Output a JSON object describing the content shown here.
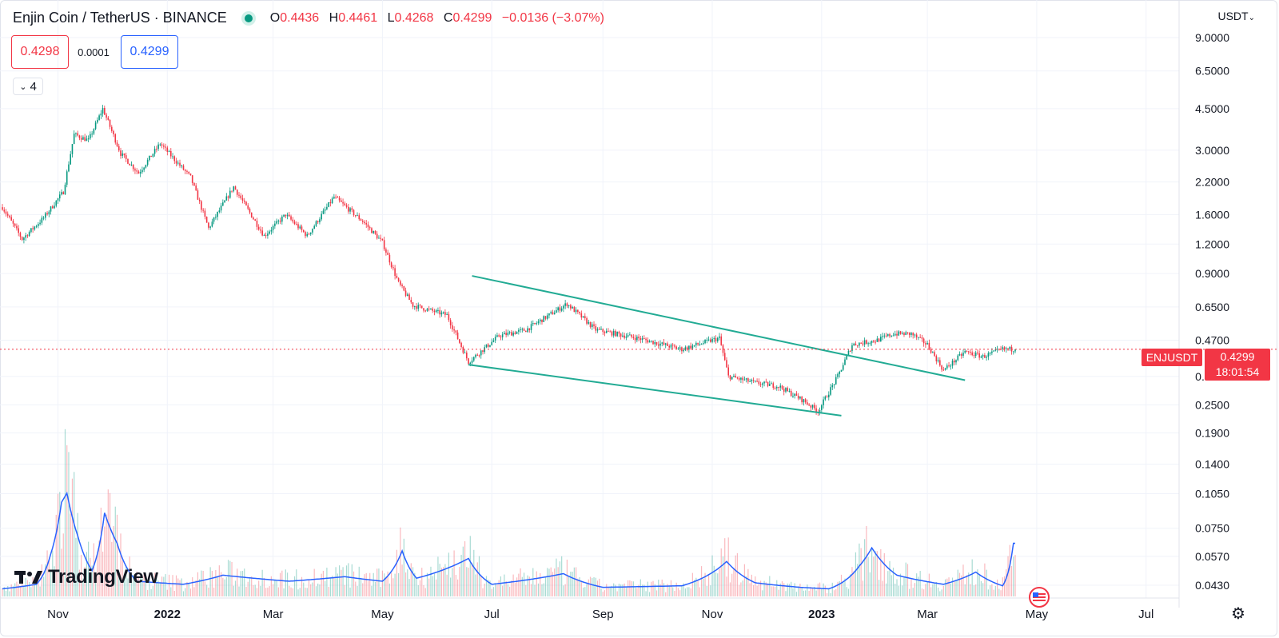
{
  "header": {
    "title": "Enjin Coin / TetherUS · BINANCE",
    "o_label": "O",
    "o_value": "0.4436",
    "h_label": "H",
    "h_value": "0.4461",
    "l_label": "L",
    "l_value": "0.4268",
    "c_label": "C",
    "c_value": "0.4299",
    "change": "−0.0136 (−3.07%)"
  },
  "trade": {
    "sell": "0.4298",
    "spread": "0.0001",
    "buy": "0.4299"
  },
  "indicators_toggle": {
    "count": "4"
  },
  "currency": "USDT",
  "symbol_label": "ENJUSDT",
  "last_price": "0.4299",
  "countdown": "18:01:54",
  "brand": "TradingView",
  "colors": {
    "up": "#089981",
    "down": "#f23645",
    "volume_ma": "#2962ff",
    "channel": "#22ab94",
    "grid": "#f0f3fa"
  },
  "chart_data": {
    "type": "candlestick",
    "title": "Enjin Coin / TetherUS · BINANCE",
    "y_scale": "log",
    "y_ticks": [
      "9.0000",
      "6.5000",
      "4.5000",
      "3.0000",
      "2.2000",
      "1.6000",
      "1.2000",
      "0.9000",
      "0.6500",
      "0.4700",
      "0.3300",
      "0.2500",
      "0.1900",
      "0.1400",
      "0.1050",
      "0.0750",
      "0.0570",
      "0.0430"
    ],
    "x_ticks": [
      "Nov",
      "2022",
      "Mar",
      "May",
      "Jul",
      "Sep",
      "Nov",
      "2023",
      "Mar",
      "May",
      "Jul"
    ],
    "current_price": 0.4299,
    "price_path": [
      {
        "date": "2021-10-01",
        "close": 1.72
      },
      {
        "date": "2021-10-12",
        "close": 1.26
      },
      {
        "date": "2021-10-24",
        "close": 1.55
      },
      {
        "date": "2021-11-04",
        "close": 2.0
      },
      {
        "date": "2021-11-10",
        "close": 3.5
      },
      {
        "date": "2021-11-18",
        "close": 3.3
      },
      {
        "date": "2021-11-26",
        "close": 4.5
      },
      {
        "date": "2021-12-06",
        "close": 2.9
      },
      {
        "date": "2021-12-16",
        "close": 2.4
      },
      {
        "date": "2021-12-28",
        "close": 3.2
      },
      {
        "date": "2022-01-14",
        "close": 2.3
      },
      {
        "date": "2022-01-24",
        "close": 1.4
      },
      {
        "date": "2022-02-07",
        "close": 2.1
      },
      {
        "date": "2022-02-24",
        "close": 1.3
      },
      {
        "date": "2022-03-08",
        "close": 1.6
      },
      {
        "date": "2022-03-20",
        "close": 1.3
      },
      {
        "date": "2022-04-04",
        "close": 1.9
      },
      {
        "date": "2022-04-20",
        "close": 1.5
      },
      {
        "date": "2022-05-01",
        "close": 1.22
      },
      {
        "date": "2022-05-10",
        "close": 0.82
      },
      {
        "date": "2022-05-18",
        "close": 0.66
      },
      {
        "date": "2022-06-06",
        "close": 0.6
      },
      {
        "date": "2022-06-18",
        "close": 0.38
      },
      {
        "date": "2022-07-05",
        "close": 0.49
      },
      {
        "date": "2022-07-20",
        "close": 0.52
      },
      {
        "date": "2022-08-12",
        "close": 0.67
      },
      {
        "date": "2022-08-28",
        "close": 0.52
      },
      {
        "date": "2022-09-20",
        "close": 0.48
      },
      {
        "date": "2022-10-15",
        "close": 0.43
      },
      {
        "date": "2022-11-05",
        "close": 0.48
      },
      {
        "date": "2022-11-10",
        "close": 0.33
      },
      {
        "date": "2022-11-25",
        "close": 0.31
      },
      {
        "date": "2022-12-08",
        "close": 0.3
      },
      {
        "date": "2022-12-22",
        "close": 0.26
      },
      {
        "date": "2022-12-30",
        "close": 0.235
      },
      {
        "date": "2023-01-10",
        "close": 0.33
      },
      {
        "date": "2023-01-18",
        "close": 0.45
      },
      {
        "date": "2023-02-01",
        "close": 0.47
      },
      {
        "date": "2023-02-10",
        "close": 0.5
      },
      {
        "date": "2023-02-20",
        "close": 0.5
      },
      {
        "date": "2023-03-01",
        "close": 0.45
      },
      {
        "date": "2023-03-10",
        "close": 0.35
      },
      {
        "date": "2023-03-22",
        "close": 0.42
      },
      {
        "date": "2023-04-01",
        "close": 0.4
      },
      {
        "date": "2023-04-12",
        "close": 0.43
      },
      {
        "date": "2023-04-19",
        "close": 0.4299
      }
    ],
    "channel_lines": [
      {
        "name": "upper",
        "from": {
          "date": "2022-06-20",
          "price": 0.88
        },
        "to": {
          "date": "2023-03-22",
          "price": 0.318
        }
      },
      {
        "name": "lower",
        "from": {
          "date": "2022-06-18",
          "price": 0.37
        },
        "to": {
          "date": "2023-01-12",
          "price": 0.225
        }
      }
    ],
    "volume_ma_path": [
      {
        "date": "2021-10-01",
        "value": 0.05
      },
      {
        "date": "2021-10-20",
        "value": 0.08
      },
      {
        "date": "2021-10-28",
        "value": 0.28
      },
      {
        "date": "2021-11-03",
        "value": 0.62
      },
      {
        "date": "2021-11-06",
        "value": 0.68
      },
      {
        "date": "2021-11-12",
        "value": 0.4
      },
      {
        "date": "2021-11-20",
        "value": 0.17
      },
      {
        "date": "2021-11-27",
        "value": 0.55
      },
      {
        "date": "2021-12-04",
        "value": 0.35
      },
      {
        "date": "2021-12-15",
        "value": 0.1
      },
      {
        "date": "2022-01-10",
        "value": 0.08
      },
      {
        "date": "2022-02-01",
        "value": 0.14
      },
      {
        "date": "2022-03-10",
        "value": 0.1
      },
      {
        "date": "2022-04-10",
        "value": 0.13
      },
      {
        "date": "2022-05-01",
        "value": 0.1
      },
      {
        "date": "2022-05-12",
        "value": 0.3
      },
      {
        "date": "2022-05-20",
        "value": 0.12
      },
      {
        "date": "2022-06-18",
        "value": 0.25
      },
      {
        "date": "2022-07-01",
        "value": 0.08
      },
      {
        "date": "2022-08-10",
        "value": 0.15
      },
      {
        "date": "2022-09-01",
        "value": 0.06
      },
      {
        "date": "2022-10-15",
        "value": 0.07
      },
      {
        "date": "2022-11-09",
        "value": 0.23
      },
      {
        "date": "2022-11-25",
        "value": 0.09
      },
      {
        "date": "2022-12-20",
        "value": 0.06
      },
      {
        "date": "2023-01-05",
        "value": 0.05
      },
      {
        "date": "2023-01-22",
        "value": 0.2
      },
      {
        "date": "2023-01-29",
        "value": 0.32
      },
      {
        "date": "2023-02-12",
        "value": 0.14
      },
      {
        "date": "2023-03-10",
        "value": 0.08
      },
      {
        "date": "2023-03-28",
        "value": 0.16
      },
      {
        "date": "2023-04-12",
        "value": 0.07
      },
      {
        "date": "2023-04-18",
        "value": 0.35
      }
    ]
  }
}
